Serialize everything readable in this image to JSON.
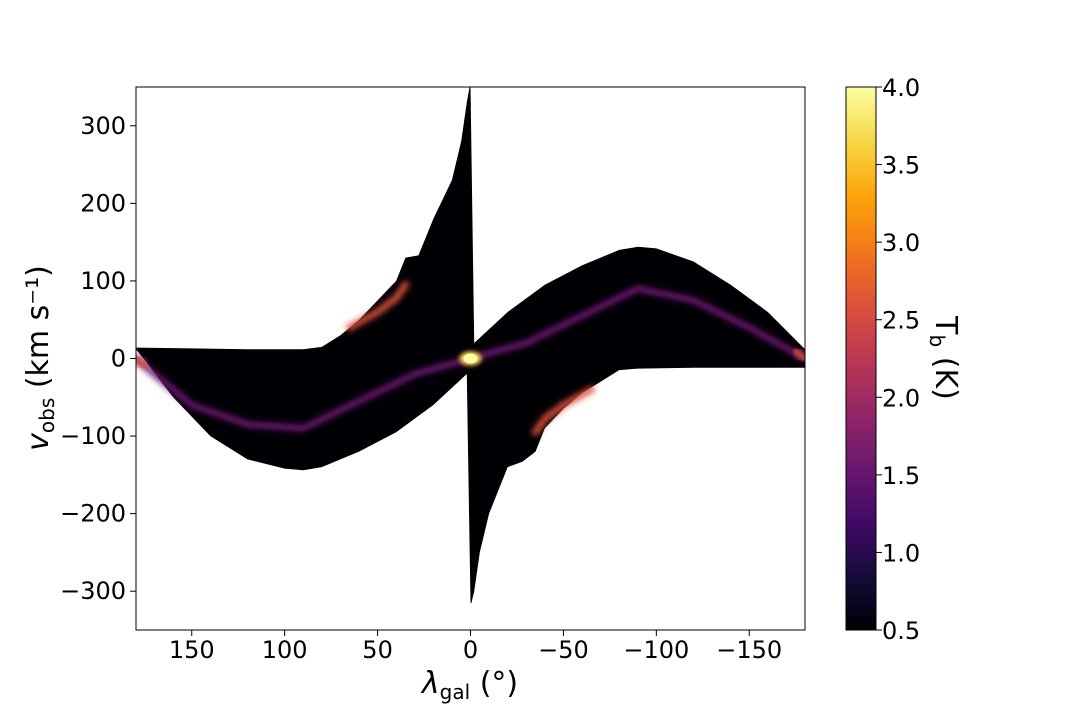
{
  "chart_data": {
    "type": "heatmap",
    "title": "",
    "xlabel": {
      "main": "λ",
      "sub": "gal",
      "unit": " (°)"
    },
    "ylabel": {
      "main": "v",
      "sub": "obs",
      "unit": " (km s⁻¹)"
    },
    "xlim": [
      180,
      -180
    ],
    "ylim": [
      -350,
      350
    ],
    "xticks": [
      150,
      100,
      50,
      0,
      -50,
      -100,
      -150
    ],
    "xtick_labels": [
      "150",
      "100",
      "50",
      "0",
      "−50",
      "−100",
      "−150"
    ],
    "yticks": [
      300,
      200,
      100,
      0,
      -100,
      -200,
      -300
    ],
    "ytick_labels": [
      "300",
      "200",
      "100",
      "0",
      "−100",
      "−200",
      "−300"
    ],
    "colorbar": {
      "label": {
        "main": "T",
        "sub": "b",
        "unit": " (K)"
      },
      "range": [
        0.5,
        4.0
      ],
      "ticks": [
        4.0,
        3.5,
        3.0,
        2.5,
        2.0,
        1.5,
        1.0,
        0.5
      ],
      "tick_labels": [
        "4.0",
        "3.5",
        "3.0",
        "2.5",
        "2.0",
        "1.5",
        "1.0",
        "0.5"
      ],
      "colormap": "inferno"
    },
    "emission_region": {
      "description_units": "longitude in degrees, velocity in km/s",
      "upper_envelope": [
        [
          180,
          14
        ],
        [
          150,
          13
        ],
        [
          120,
          12
        ],
        [
          90,
          12
        ],
        [
          80,
          15
        ],
        [
          70,
          30
        ],
        [
          60,
          50
        ],
        [
          50,
          75
        ],
        [
          40,
          100
        ],
        [
          35,
          130
        ],
        [
          28,
          133
        ],
        [
          20,
          180
        ],
        [
          10,
          230
        ],
        [
          5,
          280
        ],
        [
          2,
          330
        ],
        [
          0.5,
          350
        ],
        [
          0,
          350
        ],
        [
          -2,
          20
        ],
        [
          -20,
          60
        ],
        [
          -40,
          95
        ],
        [
          -60,
          120
        ],
        [
          -80,
          140
        ],
        [
          -90,
          144
        ],
        [
          -100,
          142
        ],
        [
          -120,
          125
        ],
        [
          -140,
          95
        ],
        [
          -160,
          60
        ],
        [
          -180,
          12
        ]
      ],
      "lower_envelope": [
        [
          180,
          12
        ],
        [
          160,
          -50
        ],
        [
          140,
          -100
        ],
        [
          120,
          -130
        ],
        [
          100,
          -142
        ],
        [
          90,
          -144
        ],
        [
          80,
          -140
        ],
        [
          60,
          -120
        ],
        [
          40,
          -95
        ],
        [
          20,
          -60
        ],
        [
          2,
          -20
        ],
        [
          0,
          -315
        ],
        [
          -0.5,
          -315
        ],
        [
          -2,
          -300
        ],
        [
          -5,
          -250
        ],
        [
          -10,
          -200
        ],
        [
          -20,
          -140
        ],
        [
          -28,
          -133
        ],
        [
          -35,
          -120
        ],
        [
          -40,
          -90
        ],
        [
          -50,
          -65
        ],
        [
          -60,
          -45
        ],
        [
          -70,
          -30
        ],
        [
          -80,
          -15
        ],
        [
          -90,
          -13
        ],
        [
          -120,
          -12
        ],
        [
          -150,
          -12
        ],
        [
          -180,
          -12
        ]
      ],
      "peak_ridges": [
        {
          "points": [
            [
              180,
              0
            ],
            [
              150,
              -60
            ],
            [
              120,
              -85
            ],
            [
              90,
              -90
            ],
            [
              60,
              -55
            ],
            [
              30,
              -20
            ],
            [
              0,
              0
            ]
          ],
          "level": 1.3
        },
        {
          "points": [
            [
              65,
              40
            ],
            [
              50,
              60
            ],
            [
              40,
              78
            ],
            [
              35,
              95
            ]
          ],
          "level": 2.6
        },
        {
          "points": [
            [
              0,
              0
            ],
            [
              -30,
              20
            ],
            [
              -60,
              55
            ],
            [
              -90,
              90
            ],
            [
              -120,
              75
            ],
            [
              -150,
              40
            ],
            [
              -180,
              0
            ]
          ],
          "level": 1.3
        },
        {
          "points": [
            [
              -35,
              -95
            ],
            [
              -40,
              -78
            ],
            [
              -50,
              -60
            ],
            [
              -65,
              -40
            ]
          ],
          "level": 2.6
        },
        {
          "points": [
            [
              180,
              0
            ],
            [
              175,
              -10
            ]
          ],
          "level": 2.4
        },
        {
          "points": [
            [
              -180,
              0
            ],
            [
              -175,
              10
            ]
          ],
          "level": 2.4
        }
      ],
      "central_peak": {
        "lon": 0,
        "vel": 0,
        "level": 4.0
      }
    }
  }
}
